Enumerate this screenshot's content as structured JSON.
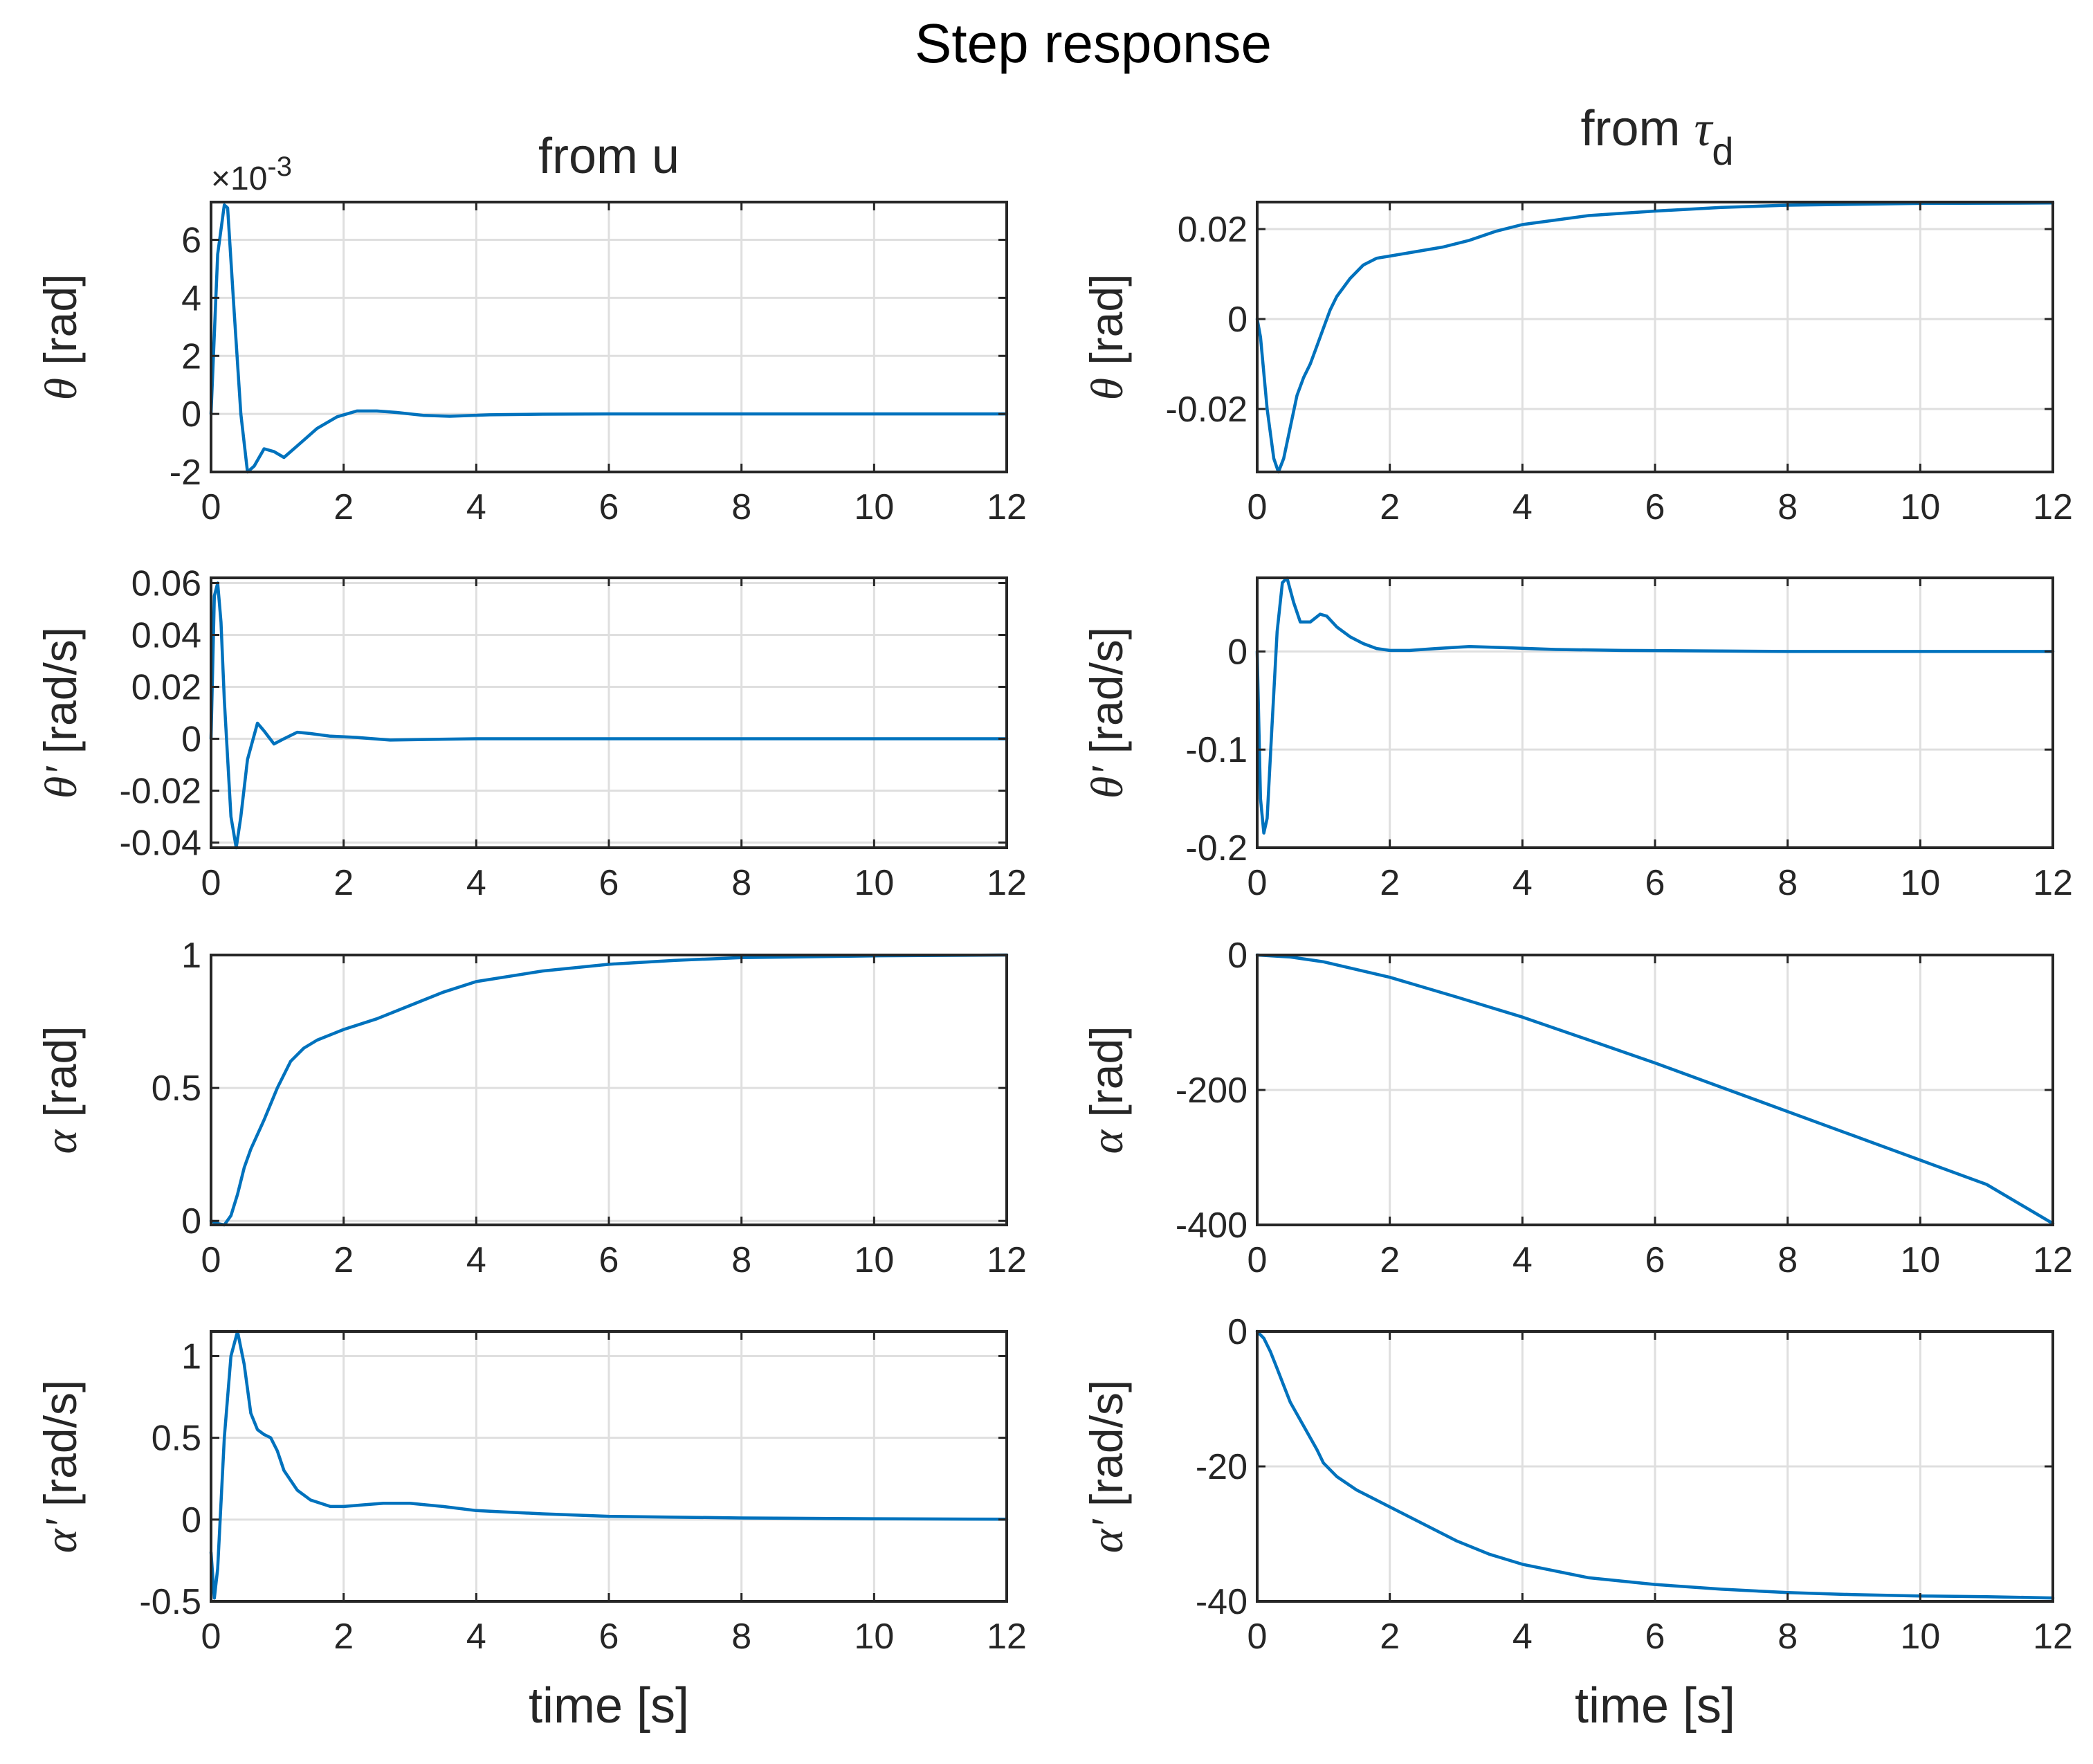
{
  "chart_data": {
    "type": "line",
    "title": "Step response",
    "line_color": "#0072BD",
    "columns": [
      {
        "title": "from u"
      },
      {
        "title": "from ",
        "symbol": "τ",
        "subscript": "d"
      }
    ],
    "xlabel": "time [s]",
    "xlim": [
      0,
      12
    ],
    "xticks": [
      0,
      2,
      4,
      6,
      8,
      10,
      12
    ],
    "xtick_labels": [
      "0",
      "2",
      "4",
      "6",
      "8",
      "10",
      "12"
    ],
    "grid": true,
    "panels": [
      {
        "row": 0,
        "col": 0,
        "ylabel_symbol": "θ",
        "ylabel_unit": " [rad]",
        "ylim": [
          -2,
          7.3
        ],
        "yticks": [
          -2,
          0,
          2,
          4,
          6
        ],
        "ytick_labels": [
          "-2",
          "0",
          "2",
          "4",
          "6"
        ],
        "exponent_times": "×10",
        "exponent_power": "-3",
        "series": {
          "name": "θ from u",
          "x": [
            0,
            0.1,
            0.2,
            0.25,
            0.35,
            0.45,
            0.55,
            0.65,
            0.8,
            0.95,
            1.1,
            1.3,
            1.6,
            1.9,
            2.2,
            2.5,
            2.8,
            3.2,
            3.6,
            4.2,
            5,
            6,
            8,
            10,
            12
          ],
          "y": [
            0,
            5.5,
            7.2,
            7.1,
            3.5,
            0,
            -2,
            -1.8,
            -1.2,
            -1.3,
            -1.5,
            -1.1,
            -0.5,
            -0.1,
            0.1,
            0.1,
            0.05,
            -0.05,
            -0.08,
            -0.03,
            -0.01,
            0,
            0,
            0,
            0
          ]
        }
      },
      {
        "row": 0,
        "col": 1,
        "ylabel_symbol": "θ",
        "ylabel_unit": " [rad]",
        "ylim": [
          -0.034,
          0.026
        ],
        "yticks": [
          -0.02,
          0,
          0.02
        ],
        "ytick_labels": [
          "-0.02",
          "0",
          "0.02"
        ],
        "series": {
          "name": "θ from τd",
          "x": [
            0,
            0.05,
            0.15,
            0.25,
            0.32,
            0.4,
            0.5,
            0.6,
            0.7,
            0.8,
            0.9,
            1.0,
            1.1,
            1.2,
            1.4,
            1.6,
            1.8,
            2,
            2.4,
            2.8,
            3.2,
            3.6,
            4,
            5,
            6,
            7,
            8,
            10,
            12
          ],
          "y": [
            0,
            -0.004,
            -0.02,
            -0.031,
            -0.034,
            -0.031,
            -0.024,
            -0.017,
            -0.013,
            -0.01,
            -0.006,
            -0.002,
            0.002,
            0.005,
            0.009,
            0.012,
            0.0135,
            0.014,
            0.015,
            0.016,
            0.0175,
            0.0195,
            0.021,
            0.023,
            0.024,
            0.0248,
            0.0253,
            0.0257,
            0.0258
          ]
        }
      },
      {
        "row": 1,
        "col": 0,
        "ylabel_symbol": "θ'",
        "ylabel_unit": " [rad/s]",
        "ylim": [
          -0.042,
          0.062
        ],
        "yticks": [
          -0.04,
          -0.02,
          0,
          0.02,
          0.04,
          0.06
        ],
        "ytick_labels": [
          "-0.04",
          "-0.02",
          "0",
          "0.02",
          "0.04",
          "0.06"
        ],
        "series": {
          "name": "θ' from u",
          "x": [
            0,
            0.05,
            0.1,
            0.15,
            0.2,
            0.3,
            0.38,
            0.45,
            0.55,
            0.7,
            0.8,
            0.95,
            1.1,
            1.3,
            1.5,
            1.8,
            2.2,
            2.7,
            3.2,
            4,
            5,
            6,
            8,
            10,
            12
          ],
          "y": [
            0,
            0.055,
            0.06,
            0.045,
            0.015,
            -0.03,
            -0.042,
            -0.03,
            -0.008,
            0.006,
            0.003,
            -0.002,
            0,
            0.0025,
            0.002,
            0.001,
            0.0005,
            -0.0005,
            -0.0003,
            0,
            0,
            0,
            0,
            0,
            0
          ]
        }
      },
      {
        "row": 1,
        "col": 1,
        "ylabel_symbol": "θ'",
        "ylabel_unit": " [rad/s]",
        "ylim": [
          -0.2,
          0.075
        ],
        "yticks": [
          -0.2,
          -0.1,
          0
        ],
        "ytick_labels": [
          "-0.2",
          "-0.1",
          "0"
        ],
        "series": {
          "name": "θ' from τd",
          "x": [
            0,
            0.05,
            0.1,
            0.15,
            0.22,
            0.3,
            0.38,
            0.45,
            0.55,
            0.65,
            0.8,
            0.95,
            1.05,
            1.2,
            1.4,
            1.6,
            1.8,
            2,
            2.3,
            2.7,
            3.2,
            3.7,
            4.5,
            5.5,
            7,
            8,
            10,
            12
          ],
          "y": [
            0,
            -0.15,
            -0.185,
            -0.17,
            -0.08,
            0.02,
            0.07,
            0.075,
            0.05,
            0.03,
            0.03,
            0.038,
            0.036,
            0.025,
            0.015,
            0.008,
            0.003,
            0.001,
            0.001,
            0.003,
            0.005,
            0.004,
            0.002,
            0.001,
            0.0005,
            0,
            0,
            0
          ]
        }
      },
      {
        "row": 2,
        "col": 0,
        "ylabel_symbol": "α",
        "ylabel_unit": " [rad]",
        "ylim": [
          -0.015,
          1.0
        ],
        "yticks": [
          0,
          0.5,
          1
        ],
        "ytick_labels": [
          "0",
          "0.5",
          "1"
        ],
        "series": {
          "name": "α from u",
          "x": [
            0,
            0.1,
            0.2,
            0.3,
            0.4,
            0.5,
            0.6,
            0.8,
            1.0,
            1.2,
            1.4,
            1.6,
            1.8,
            2,
            2.5,
            3,
            3.5,
            4,
            5,
            6,
            7,
            8,
            10,
            12
          ],
          "y": [
            0,
            -0.01,
            -0.015,
            0.02,
            0.1,
            0.2,
            0.27,
            0.38,
            0.5,
            0.6,
            0.65,
            0.68,
            0.7,
            0.72,
            0.76,
            0.81,
            0.86,
            0.9,
            0.94,
            0.965,
            0.98,
            0.99,
            0.997,
            1.0
          ]
        }
      },
      {
        "row": 2,
        "col": 1,
        "ylabel_symbol": "α",
        "ylabel_unit": " [rad]",
        "ylim": [
          -400,
          0
        ],
        "yticks": [
          -400,
          -200,
          0
        ],
        "ytick_labels": [
          "-400",
          "-200",
          "0"
        ],
        "series": {
          "name": "α from τd",
          "x": [
            0,
            0.5,
            1,
            2,
            3,
            4,
            5,
            6,
            7,
            8,
            9,
            10,
            11,
            12
          ],
          "y": [
            0,
            -3,
            -10,
            -33,
            -62,
            -92,
            -126,
            -160,
            -196,
            -232,
            -268,
            -304,
            -340,
            -398
          ]
        }
      },
      {
        "row": 3,
        "col": 0,
        "ylabel_symbol": "α'",
        "ylabel_unit": " [rad/s]",
        "ylim": [
          -0.5,
          1.15
        ],
        "yticks": [
          -0.5,
          0,
          0.5,
          1
        ],
        "ytick_labels": [
          "-0.5",
          "0",
          "0.5",
          "1"
        ],
        "series": {
          "name": "α' from u",
          "x": [
            0,
            0.05,
            0.1,
            0.2,
            0.3,
            0.4,
            0.5,
            0.6,
            0.7,
            0.8,
            0.9,
            1.0,
            1.1,
            1.3,
            1.5,
            1.8,
            2.0,
            2.3,
            2.6,
            3.0,
            3.5,
            4,
            5,
            6,
            8,
            10,
            12
          ],
          "y": [
            -0.2,
            -0.48,
            -0.3,
            0.5,
            1.0,
            1.15,
            0.95,
            0.65,
            0.55,
            0.52,
            0.5,
            0.42,
            0.3,
            0.18,
            0.12,
            0.08,
            0.08,
            0.09,
            0.1,
            0.1,
            0.08,
            0.055,
            0.035,
            0.02,
            0.01,
            0.005,
            0.002
          ]
        }
      },
      {
        "row": 3,
        "col": 1,
        "ylabel_symbol": "α'",
        "ylabel_unit": " [rad/s]",
        "ylim": [
          -40,
          0
        ],
        "yticks": [
          -40,
          -20,
          0
        ],
        "ytick_labels": [
          "-40",
          "-20",
          "0"
        ],
        "series": {
          "name": "α' from τd",
          "x": [
            0,
            0.1,
            0.2,
            0.3,
            0.4,
            0.5,
            0.7,
            0.9,
            1.0,
            1.2,
            1.5,
            2,
            2.5,
            3,
            3.5,
            4,
            5,
            6,
            7,
            8,
            9,
            10,
            11,
            12
          ],
          "y": [
            0,
            -1,
            -3,
            -5.5,
            -8,
            -10.5,
            -14,
            -17.5,
            -19.5,
            -21.5,
            -23.5,
            -26,
            -28.5,
            -31,
            -33,
            -34.5,
            -36.5,
            -37.5,
            -38.2,
            -38.7,
            -39,
            -39.2,
            -39.3,
            -39.5
          ]
        }
      }
    ]
  }
}
